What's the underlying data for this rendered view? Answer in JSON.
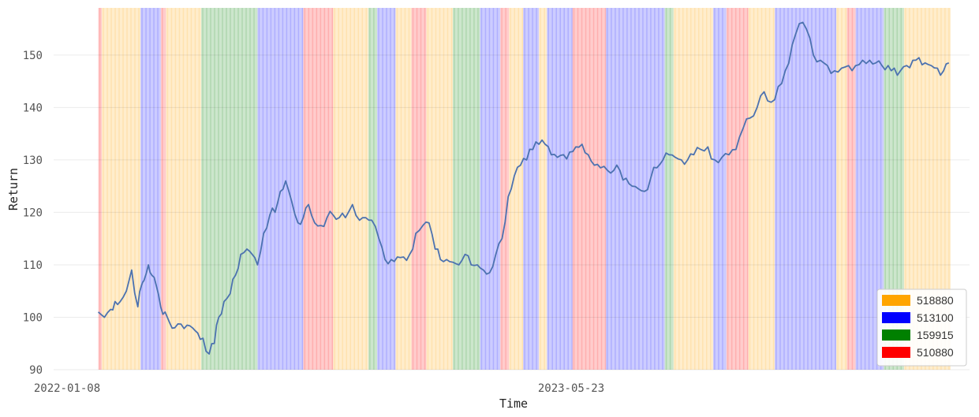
{
  "chart_data": {
    "type": "line",
    "title": "",
    "xlabel": "Time",
    "ylabel": "Return",
    "x_tick_labels": [
      "2022-01-08",
      "2023-05-23"
    ],
    "y_ticks": [
      90,
      100,
      110,
      120,
      130,
      140,
      150
    ],
    "ylim": [
      90,
      159
    ],
    "x_range_days": [
      0,
      1000
    ],
    "grid": true,
    "legend_position": "bottom-right",
    "legend": [
      {
        "label": "518880",
        "color": "#ffa500"
      },
      {
        "label": "513100",
        "color": "#0000ff"
      },
      {
        "label": "159915",
        "color": "#008000"
      },
      {
        "label": "510880",
        "color": "#ff0000"
      }
    ],
    "line_color": "#4c72b0",
    "regimes": [
      {
        "from": 31,
        "to": 35,
        "asset": "510880"
      },
      {
        "from": 35,
        "to": 79,
        "asset": "518880"
      },
      {
        "from": 79,
        "to": 102,
        "asset": "513100"
      },
      {
        "from": 102,
        "to": 108,
        "asset": "510880"
      },
      {
        "from": 108,
        "to": 148,
        "asset": "518880"
      },
      {
        "from": 148,
        "to": 212,
        "asset": "159915"
      },
      {
        "from": 212,
        "to": 264,
        "asset": "513100"
      },
      {
        "from": 264,
        "to": 298,
        "asset": "510880"
      },
      {
        "from": 298,
        "to": 338,
        "asset": "518880"
      },
      {
        "from": 338,
        "to": 348,
        "asset": "159915"
      },
      {
        "from": 348,
        "to": 369,
        "asset": "513100"
      },
      {
        "from": 369,
        "to": 387,
        "asset": "518880"
      },
      {
        "from": 387,
        "to": 404,
        "asset": "510880"
      },
      {
        "from": 404,
        "to": 434,
        "asset": "518880"
      },
      {
        "from": 434,
        "to": 465,
        "asset": "159915"
      },
      {
        "from": 465,
        "to": 488,
        "asset": "513100"
      },
      {
        "from": 488,
        "to": 498,
        "asset": "510880"
      },
      {
        "from": 498,
        "to": 514,
        "asset": "518880"
      },
      {
        "from": 514,
        "to": 532,
        "asset": "513100"
      },
      {
        "from": 532,
        "to": 541,
        "asset": "518880"
      },
      {
        "from": 541,
        "to": 570,
        "asset": "513100"
      },
      {
        "from": 570,
        "to": 608,
        "asset": "510880"
      },
      {
        "from": 608,
        "to": 675,
        "asset": "513100"
      },
      {
        "from": 675,
        "to": 685,
        "asset": "159915"
      },
      {
        "from": 685,
        "to": 730,
        "asset": "518880"
      },
      {
        "from": 730,
        "to": 745,
        "asset": "513100"
      },
      {
        "from": 745,
        "to": 770,
        "asset": "510880"
      },
      {
        "from": 770,
        "to": 800,
        "asset": "518880"
      },
      {
        "from": 800,
        "to": 870,
        "asset": "513100"
      },
      {
        "from": 870,
        "to": 882,
        "asset": "518880"
      },
      {
        "from": 882,
        "to": 892,
        "asset": "510880"
      },
      {
        "from": 892,
        "to": 924,
        "asset": "513100"
      },
      {
        "from": 924,
        "to": 947,
        "asset": "159915"
      },
      {
        "from": 947,
        "to": 1000,
        "asset": "518880"
      }
    ],
    "x": [
      31,
      38,
      45,
      50,
      56,
      63,
      69,
      76,
      80,
      83,
      88,
      92,
      97,
      102,
      107,
      112,
      118,
      125,
      132,
      138,
      144,
      150,
      157,
      163,
      168,
      174,
      181,
      187,
      193,
      200,
      206,
      212,
      219,
      226,
      232,
      238,
      244,
      251,
      258,
      264,
      270,
      277,
      284,
      291,
      298,
      305,
      312,
      320,
      328,
      335,
      342,
      350,
      357,
      364,
      371,
      378,
      385,
      392,
      400,
      407,
      414,
      420,
      427,
      434,
      441,
      448,
      455,
      462,
      469,
      476,
      483,
      490,
      497,
      504,
      511,
      518,
      525,
      532,
      539,
      546,
      553,
      560,
      567,
      574,
      581,
      588,
      595,
      602,
      610,
      617,
      624,
      631,
      638,
      645,
      652,
      659,
      666,
      673,
      680,
      687,
      694,
      701,
      708,
      716,
      724,
      732,
      740,
      748,
      756,
      764,
      772,
      780,
      788,
      796,
      804,
      812,
      820,
      828,
      836,
      844,
      852,
      860,
      868,
      876,
      884,
      892,
      900,
      908,
      915,
      922,
      929,
      936,
      943,
      950,
      957,
      964,
      971,
      978,
      985,
      992,
      998
    ],
    "y": [
      101,
      100,
      101.5,
      103,
      103,
      105,
      109,
      102,
      106,
      107,
      110,
      108,
      106,
      102,
      101,
      99,
      98,
      98.7,
      98.5,
      98,
      97,
      96,
      93,
      95,
      100,
      103,
      104.5,
      108,
      112,
      113,
      112,
      110,
      116,
      119.5,
      120,
      124,
      126,
      122,
      118,
      119,
      121.5,
      118,
      117.5,
      119,
      119.5,
      119,
      119,
      121.5,
      118.5,
      119,
      118.5,
      115,
      111,
      111,
      111.5,
      111.5,
      112,
      116,
      117.5,
      118,
      113,
      111,
      111,
      110.5,
      110,
      112,
      110,
      110,
      109,
      108.5,
      112,
      115,
      123,
      127,
      129,
      130,
      132,
      133,
      133,
      131,
      130.5,
      131,
      131.5,
      132.5,
      133,
      131,
      129,
      128.5,
      128,
      128,
      128,
      126.5,
      125,
      124.5,
      124,
      126.5,
      128.5,
      130,
      131,
      130.5,
      130,
      130,
      131,
      132,
      132.5,
      130,
      130.5,
      131,
      132,
      136,
      138,
      140,
      143,
      141,
      144,
      147,
      152,
      156,
      155,
      150,
      149,
      148,
      147,
      147.5,
      148,
      148,
      149,
      149,
      148.5,
      148,
      148,
      147.5,
      147,
      148,
      149,
      149.5,
      148.5,
      148,
      147.5,
      147,
      148.5
    ]
  }
}
